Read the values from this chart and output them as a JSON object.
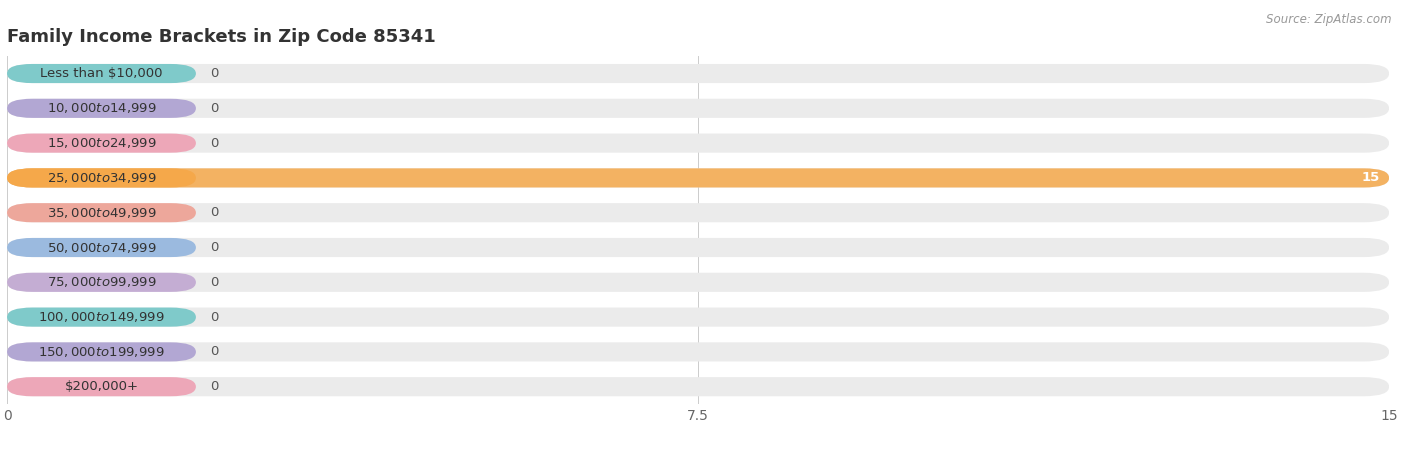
{
  "title": "Family Income Brackets in Zip Code 85341",
  "source": "Source: ZipAtlas.com",
  "categories": [
    "Less than $10,000",
    "$10,000 to $14,999",
    "$15,000 to $24,999",
    "$25,000 to $34,999",
    "$35,000 to $49,999",
    "$50,000 to $74,999",
    "$75,000 to $99,999",
    "$100,000 to $149,999",
    "$150,000 to $199,999",
    "$200,000+"
  ],
  "values": [
    0,
    0,
    0,
    15,
    0,
    0,
    0,
    0,
    0,
    0
  ],
  "bar_colors": [
    "#5BBFBF",
    "#A090CC",
    "#EF90A8",
    "#F5A84A",
    "#EF9080",
    "#80AADC",
    "#B898CC",
    "#5BBFBF",
    "#A090CC",
    "#EF90A8"
  ],
  "active_bar_index": 3,
  "xlim": [
    0,
    15
  ],
  "xticks": [
    0,
    7.5,
    15
  ],
  "background_color": "#ffffff",
  "bar_bg_color": "#ebebeb",
  "title_fontsize": 13,
  "label_fontsize": 9.5,
  "value_fontsize": 9.5
}
